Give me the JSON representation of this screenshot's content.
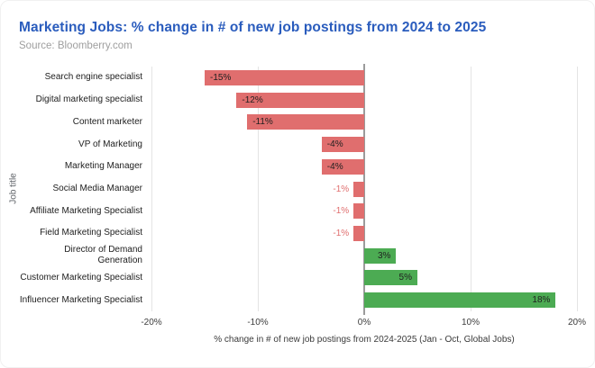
{
  "header": {
    "title": "Marketing Jobs: % change in # of new job postings from 2024 to 2025",
    "source": "Source: Bloomberry.com"
  },
  "chart_data": {
    "type": "bar",
    "orientation": "horizontal",
    "title": "Marketing Jobs: % change in # of new job postings from 2024 to 2025",
    "subtitle": "Source: Bloomberry.com",
    "categories": [
      "Search engine specialist",
      "Digital marketing specialist",
      "Content marketer",
      "VP of Marketing",
      "Marketing Manager",
      "Social Media Manager",
      "Affiliate Marketing Specialist",
      "Field Marketing Specialist",
      "Director of Demand\nGeneration",
      "Customer Marketing Specialist",
      "Influencer Marketing Specialist"
    ],
    "values": [
      -15,
      -12,
      -11,
      -4,
      -4,
      -1,
      -1,
      -1,
      3,
      5,
      18
    ],
    "value_labels": [
      "-15%",
      "-12%",
      "-11%",
      "-4%",
      "-4%",
      "-1%",
      "-1%",
      "-1%",
      "3%",
      "5%",
      "18%"
    ],
    "xlabel": "% change in # of new job postings from 2024-2025 (Jan - Oct, Global Jobs)",
    "ylabel": "Job title",
    "xlim": [
      -20,
      20
    ],
    "xticks": [
      -20,
      -10,
      0,
      10,
      20
    ],
    "xtick_labels": [
      "-20%",
      "-10%",
      "0%",
      "10%",
      "20%"
    ],
    "grid": "vertical",
    "legend": "none",
    "colors": {
      "negative_bar": "#e06e6e",
      "positive_bar": "#4cab53",
      "title_text": "#2a5cbd",
      "outside_label_text": "#e06e6e",
      "inside_label_text": "#1f1f1f"
    }
  }
}
